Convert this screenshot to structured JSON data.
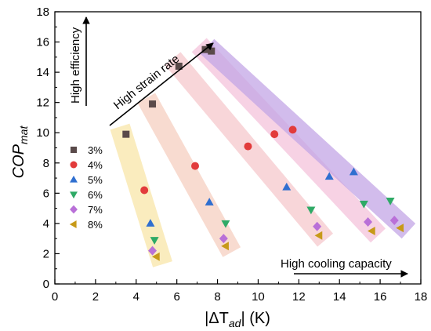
{
  "chart_data": {
    "type": "scatter",
    "title": "",
    "xlabel": "|ΔT",
    "xlabel_sub": "ad",
    "xlabel_suffix": "| (K)",
    "ylabel": "COP",
    "ylabel_sub": "mat",
    "xlim": [
      0,
      18
    ],
    "ylim": [
      0,
      18
    ],
    "x_ticks": [
      0,
      2,
      4,
      6,
      8,
      10,
      12,
      14,
      16,
      18
    ],
    "y_ticks": [
      0,
      2,
      4,
      6,
      8,
      10,
      12,
      14,
      16,
      18
    ],
    "grid": false,
    "legend_position": "left",
    "series": [
      {
        "name": "3%",
        "marker": "square",
        "color": "#5a4a4a",
        "points": [
          [
            3.5,
            9.9
          ],
          [
            4.8,
            11.9
          ],
          [
            6.1,
            14.4
          ],
          [
            7.4,
            15.5
          ],
          [
            7.7,
            15.4
          ]
        ]
      },
      {
        "name": "4%",
        "marker": "circle",
        "color": "#e23b3b",
        "points": [
          [
            4.4,
            6.2
          ],
          [
            6.9,
            7.8
          ],
          [
            9.5,
            9.1
          ],
          [
            10.8,
            9.9
          ],
          [
            11.7,
            10.2
          ]
        ]
      },
      {
        "name": "5%",
        "marker": "triangle-up",
        "color": "#2f6fd0",
        "points": [
          [
            4.7,
            4.0
          ],
          [
            7.6,
            5.4
          ],
          [
            11.4,
            6.4
          ],
          [
            13.5,
            7.1
          ],
          [
            14.7,
            7.4
          ]
        ]
      },
      {
        "name": "6%",
        "marker": "triangle-down",
        "color": "#2eaa66",
        "points": [
          [
            4.9,
            2.9
          ],
          [
            8.4,
            4.0
          ],
          [
            12.6,
            4.9
          ],
          [
            15.2,
            5.3
          ],
          [
            16.5,
            5.5
          ]
        ]
      },
      {
        "name": "7%",
        "marker": "diamond",
        "color": "#b970d8",
        "points": [
          [
            4.8,
            2.2
          ],
          [
            8.3,
            3.0
          ],
          [
            12.9,
            3.8
          ],
          [
            15.4,
            4.1
          ],
          [
            16.7,
            4.2
          ]
        ]
      },
      {
        "name": "8%",
        "marker": "triangle-left",
        "color": "#c79a18",
        "points": [
          [
            5.0,
            1.8
          ],
          [
            8.4,
            2.5
          ],
          [
            13.0,
            3.2
          ],
          [
            15.6,
            3.5
          ],
          [
            17.0,
            3.7
          ]
        ]
      }
    ],
    "bands": [
      {
        "color": "#f7df93",
        "opacity": 0.6,
        "width": 1.0,
        "from": [
          3.2,
          10.4
        ],
        "to": [
          5.3,
          1.3
        ]
      },
      {
        "color": "#f3bea9",
        "opacity": 0.55,
        "width": 1.0,
        "from": [
          4.5,
          12.3
        ],
        "to": [
          8.7,
          2.1
        ]
      },
      {
        "color": "#f2b4b9",
        "opacity": 0.55,
        "width": 1.0,
        "from": [
          5.8,
          14.9
        ],
        "to": [
          13.3,
          2.9
        ]
      },
      {
        "color": "#f0a6c9",
        "opacity": 0.5,
        "width": 1.0,
        "from": [
          7.1,
          15.8
        ],
        "to": [
          15.9,
          3.2
        ]
      },
      {
        "color": "#c3a6e6",
        "opacity": 0.75,
        "width": 1.0,
        "from": [
          7.5,
          15.7
        ],
        "to": [
          17.4,
          3.5
        ]
      }
    ],
    "annotations": {
      "efficiency": "High efficiency",
      "strain": "High strain rate",
      "cooling": "High cooling capacity"
    }
  }
}
